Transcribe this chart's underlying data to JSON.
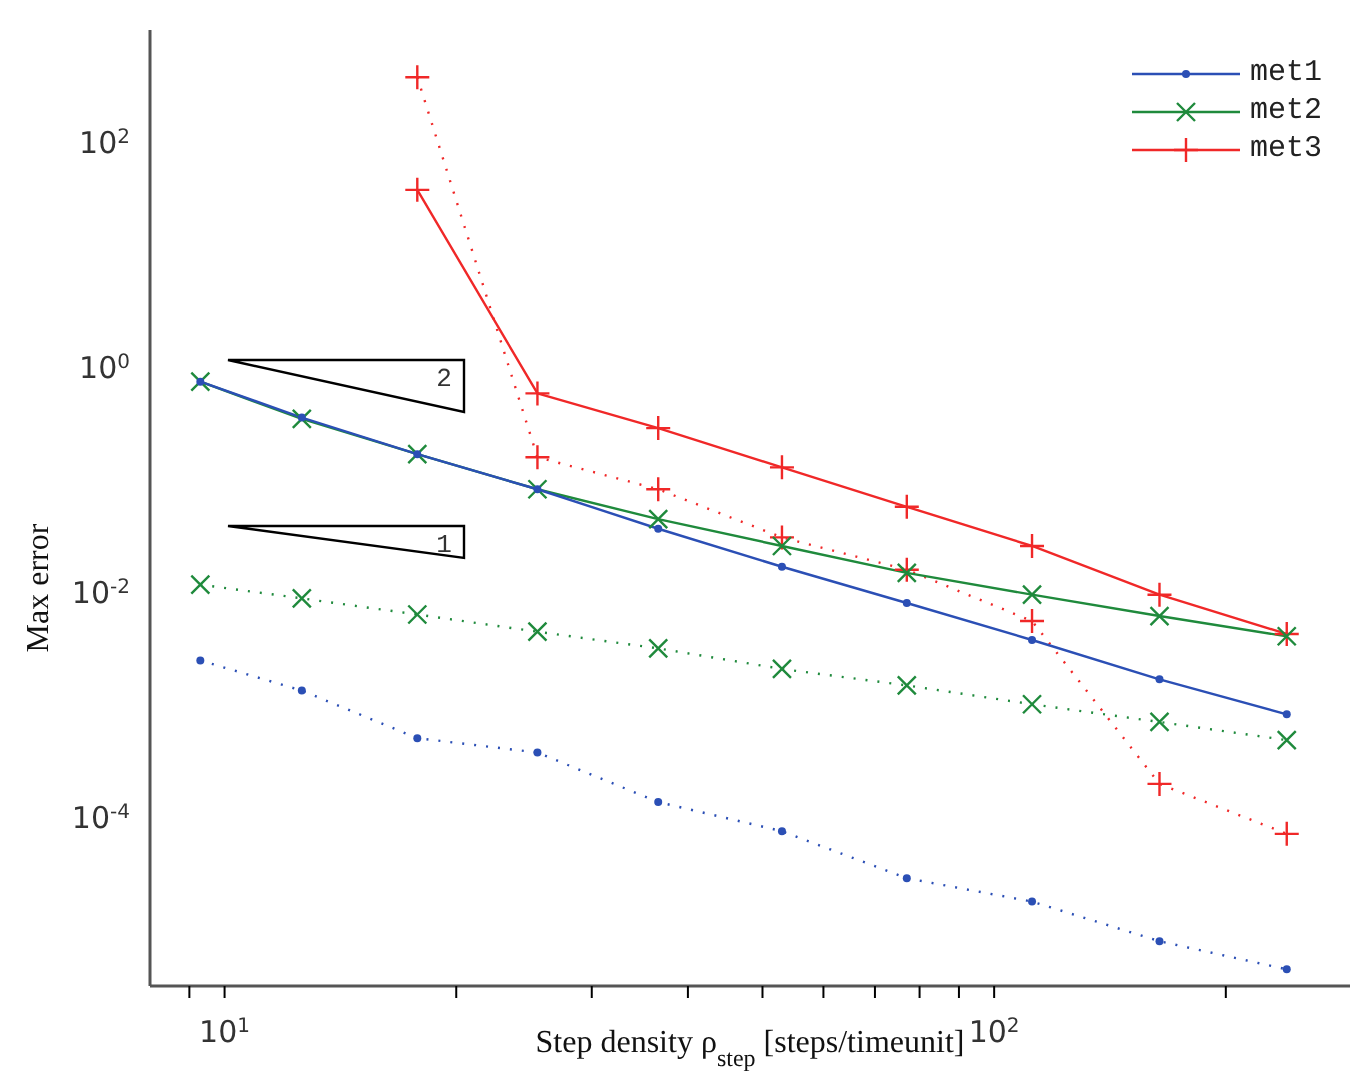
{
  "chart_data": {
    "type": "line",
    "xlabel": "Step density ρ$_{step}$ [steps/timeunit]",
    "ylabel": "Max error",
    "x": [
      9.3,
      12.6,
      17.8,
      25.5,
      36.6,
      53,
      77,
      112,
      164,
      240
    ],
    "series": [
      {
        "name": "met1",
        "color": "#2b4fb5",
        "marker": "circle",
        "line_style": "solid",
        "values": [
          0.75,
          0.36,
          0.17,
          0.083,
          0.037,
          0.017,
          0.0081,
          0.0038,
          0.0017,
          0.00083
        ]
      },
      {
        "name": "met2",
        "color": "#1f8a3c",
        "marker": "x",
        "line_style": "solid",
        "values": [
          0.75,
          0.35,
          0.17,
          0.083,
          0.045,
          0.026,
          0.015,
          0.0096,
          0.0062,
          0.0041
        ]
      },
      {
        "name": "met3",
        "color": "#f02828",
        "marker": "cross",
        "line_style": "solid",
        "values": [
          null,
          null,
          38,
          0.59,
          0.29,
          0.13,
          0.058,
          0.026,
          0.0096,
          0.0043
        ]
      },
      {
        "color": "#2b4fb5",
        "marker": "circle",
        "line_style": "dotted",
        "values": [
          0.0025,
          0.00135,
          0.00051,
          0.00038,
          0.000138,
          7.6e-05,
          2.9e-05,
          1.8e-05,
          8e-06,
          4.5e-06
        ]
      },
      {
        "color": "#1f8a3c",
        "marker": "x",
        "line_style": "dotted",
        "values": [
          0.0118,
          0.0089,
          0.0064,
          0.0045,
          0.0032,
          0.0021,
          0.0015,
          0.00102,
          0.00071,
          0.00049
        ]
      },
      {
        "color": "#f02828",
        "marker": "cross",
        "line_style": "dotted",
        "values": [
          null,
          null,
          380,
          0.16,
          0.083,
          0.031,
          0.016,
          0.0056,
          0.0002,
          7.2e-05
        ]
      }
    ],
    "log": "xy",
    "xlim": [
      8,
      290
    ],
    "ylim": [
      3.2e-06,
      1000
    ],
    "xticks": [
      {
        "value": 9,
        "label": null
      },
      {
        "value": 10,
        "label": "10$^{1}$"
      },
      {
        "value": 20,
        "label": null
      },
      {
        "value": 30,
        "label": null
      },
      {
        "value": 40,
        "label": null
      },
      {
        "value": 50,
        "label": null
      },
      {
        "value": 60,
        "label": null
      },
      {
        "value": 70,
        "label": null
      },
      {
        "value": 80,
        "label": null
      },
      {
        "value": 90,
        "label": null
      },
      {
        "value": 100,
        "label": "10$^{2}$"
      },
      {
        "value": 200,
        "label": null
      }
    ],
    "yticks": [
      {
        "value": 0.0001,
        "label": "10$^{-4}$"
      },
      {
        "value": 0.01,
        "label": "10$^{-2}$"
      },
      {
        "value": 1,
        "label": "10$^{0}$"
      },
      {
        "value": 100,
        "label": "10$^{2}$"
      }
    ],
    "grid": false,
    "legend": "top right",
    "annotations": [
      "2",
      "1"
    ]
  }
}
